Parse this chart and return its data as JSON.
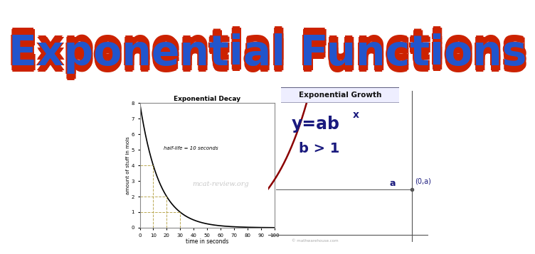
{
  "title": "Exponential Functions",
  "title_color": "#2255cc",
  "title_outline_color": "#cc2200",
  "bg_color": "#ffffff",
  "decay_title": "Exponential Decay",
  "decay_xlabel": "time in seconds",
  "decay_ylabel": "amount of stuff in mols",
  "decay_watermark": "mcat-review.org",
  "decay_annotation": "half-life = 10 seconds",
  "decay_x_ticks": [
    0,
    10,
    20,
    30,
    40,
    50,
    60,
    70,
    80,
    90,
    100
  ],
  "decay_y_ticks": [
    0,
    1,
    2,
    3,
    4,
    5,
    6,
    7,
    8
  ],
  "growth_title": "Exponential Growth",
  "growth_condition": "b > 1",
  "growth_label_a": "a",
  "growth_label_0a": "(0,a)",
  "curve_color": "#8B0000",
  "axis_color": "#555555",
  "text_dark_blue": "#1a1a7e",
  "dashed_line_color": "#bbaa55",
  "watermark_color": "#bbbbbb",
  "copyright": "© mathwarehouse.com",
  "growth_box_edge": "#555577",
  "growth_box_face": "#eeeeff"
}
